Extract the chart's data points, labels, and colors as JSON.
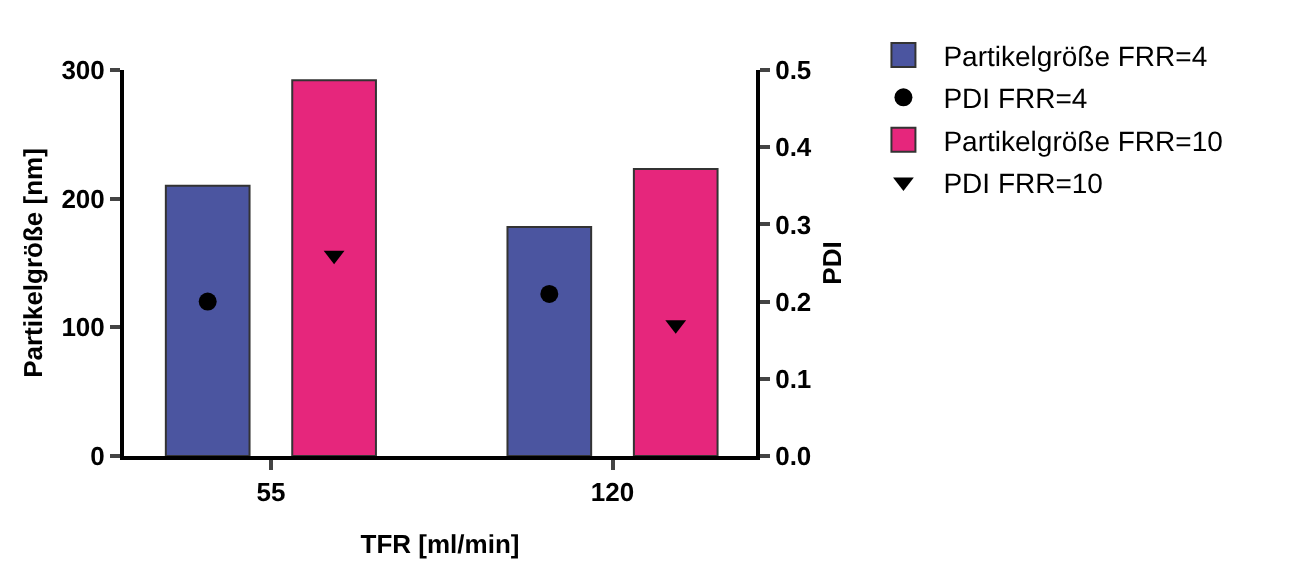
{
  "chart_data": {
    "type": "bar",
    "xlabel": "TFR [ml/min]",
    "ylabel": "Partikelgröße [nm]",
    "y2label": "PDI",
    "categories": [
      "55",
      "120"
    ],
    "series": [
      {
        "name": "Partikelgröße FRR=4",
        "color": "#4b55a0",
        "values": [
          210,
          178
        ]
      },
      {
        "name": "PDI FRR=4",
        "type": "scatter",
        "axis": "y2",
        "marker": "circle",
        "color": "#000000",
        "values": [
          0.2,
          0.21
        ]
      },
      {
        "name": "Partikelgröße FRR=10",
        "color": "#e6267c",
        "values": [
          292,
          223
        ]
      },
      {
        "name": "PDI FRR=10",
        "type": "scatter",
        "axis": "y2",
        "marker": "triangle",
        "color": "#000000",
        "values": [
          0.26,
          0.17
        ]
      }
    ],
    "ylim": [
      0,
      300
    ],
    "yticks": [
      0,
      100,
      200,
      300
    ],
    "y2lim": [
      0,
      0.5
    ],
    "y2ticks": [
      {
        "value": 0,
        "label": "0.0"
      },
      0.1,
      0.2,
      0.3,
      0.4,
      0.5
    ],
    "legend": "top right"
  }
}
